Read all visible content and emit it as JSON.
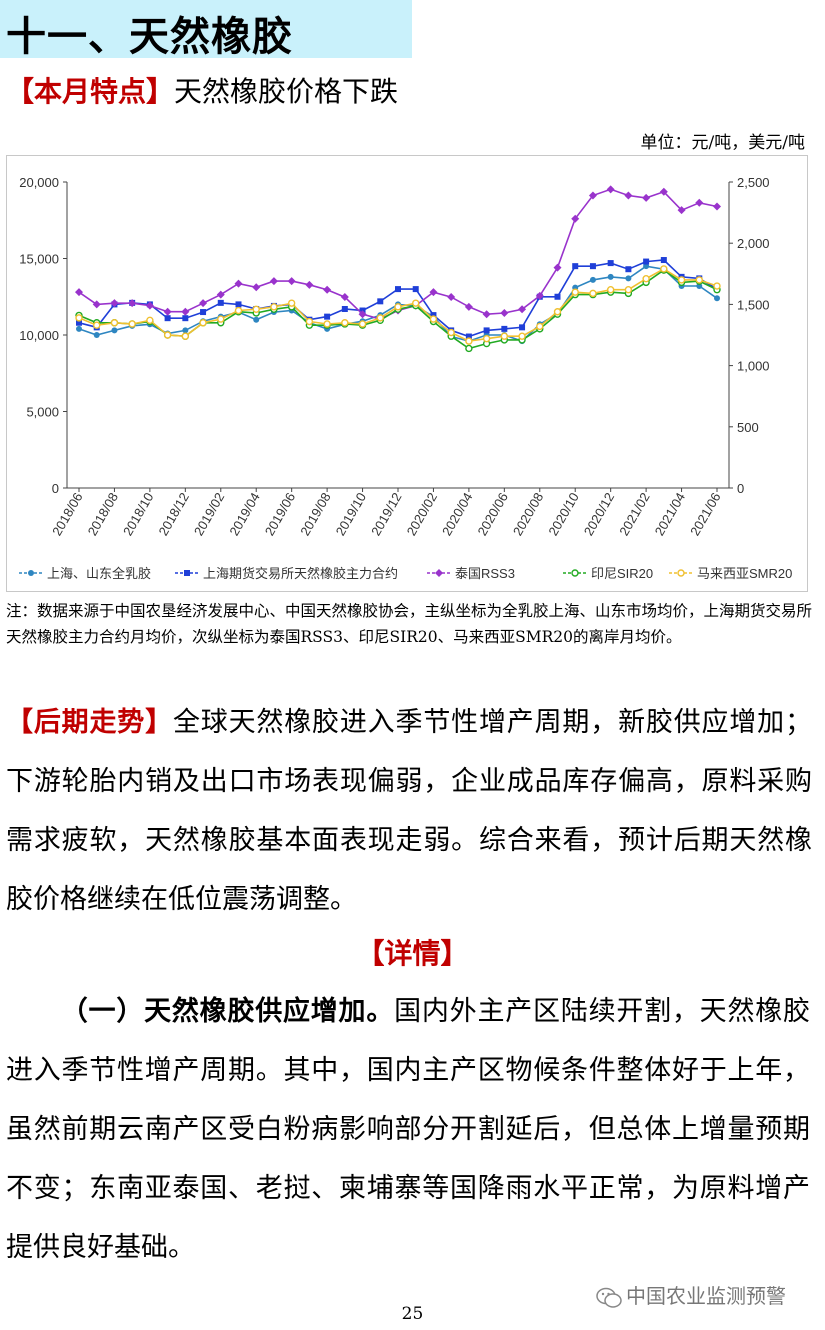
{
  "section_title": "十一、天然橡胶",
  "feature": {
    "tag": "【本月特点】",
    "text": "天然橡胶价格下跌"
  },
  "unit_note": "单位：元/吨，美元/吨",
  "chart_data": {
    "type": "line",
    "x": [
      "2018/06",
      "2018/07",
      "2018/08",
      "2018/09",
      "2018/10",
      "2018/11",
      "2018/12",
      "2019/01",
      "2019/02",
      "2019/03",
      "2019/04",
      "2019/05",
      "2019/06",
      "2019/07",
      "2019/08",
      "2019/09",
      "2019/10",
      "2019/11",
      "2019/12",
      "2020/01",
      "2020/02",
      "2020/03",
      "2020/04",
      "2020/05",
      "2020/06",
      "2020/07",
      "2020/08",
      "2020/09",
      "2020/10",
      "2020/11",
      "2020/12",
      "2021/01",
      "2021/02",
      "2021/03",
      "2021/04",
      "2021/05",
      "2021/06"
    ],
    "x_tick_labels": [
      "2018/06",
      "2018/08",
      "2018/10",
      "2018/12",
      "2019/02",
      "2019/04",
      "2019/06",
      "2019/08",
      "2019/10",
      "2019/12",
      "2020/02",
      "2020/04",
      "2020/06",
      "2020/08",
      "2020/10",
      "2020/12",
      "2021/02",
      "2021/04",
      "2021/06"
    ],
    "y_left": {
      "ylim": [
        0,
        20000
      ],
      "ticks": [
        "0",
        "5,000",
        "10,000",
        "15,000",
        "20,000"
      ]
    },
    "y_right": {
      "ylim": [
        0,
        2500
      ],
      "ticks": [
        "0",
        "500",
        "1,000",
        "1,500",
        "2,000",
        "2,500"
      ]
    },
    "series": [
      {
        "name": "上海、山东全乳胶",
        "axis": "left",
        "color": "#2e86c1",
        "marker": "circle-filled",
        "values": [
          10400,
          10000,
          10300,
          10600,
          10700,
          10100,
          10300,
          10900,
          11200,
          11500,
          11000,
          11500,
          11600,
          10800,
          10400,
          10700,
          10900,
          11300,
          12000,
          11900,
          11200,
          9900,
          9600,
          10000,
          10000,
          9600,
          10700,
          11400,
          13100,
          13600,
          13800,
          13700,
          14500,
          14300,
          13200,
          13200,
          12400
        ]
      },
      {
        "name": "上海期货交易所天然橡胶主力合约",
        "axis": "left",
        "color": "#1f3fd8",
        "marker": "square-filled",
        "values": [
          10800,
          10500,
          12000,
          12100,
          12000,
          11100,
          11100,
          11500,
          12100,
          12000,
          11700,
          11900,
          12000,
          11000,
          11200,
          11700,
          11600,
          12200,
          13000,
          13000,
          11300,
          10300,
          9900,
          10300,
          10400,
          10500,
          12500,
          12500,
          14500,
          14500,
          14700,
          14300,
          14800,
          14900,
          13800,
          13700,
          13000
        ]
      },
      {
        "name": "泰国RSS3",
        "axis": "right",
        "color": "#9933cc",
        "marker": "diamond-filled",
        "values": [
          1600,
          1500,
          1510,
          1510,
          1490,
          1440,
          1440,
          1510,
          1580,
          1670,
          1640,
          1690,
          1690,
          1660,
          1620,
          1560,
          1420,
          1380,
          1450,
          1490,
          1600,
          1560,
          1480,
          1420,
          1430,
          1460,
          1570,
          1800,
          2200,
          2390,
          2440,
          2390,
          2370,
          2420,
          2270,
          2330,
          2300
        ]
      },
      {
        "name": "印尼SIR20",
        "axis": "right",
        "color": "#22aa22",
        "marker": "circle-open",
        "values": [
          1410,
          1350,
          1350,
          1340,
          1360,
          1250,
          1240,
          1350,
          1350,
          1440,
          1430,
          1460,
          1480,
          1330,
          1330,
          1340,
          1330,
          1370,
          1460,
          1490,
          1360,
          1240,
          1140,
          1180,
          1210,
          1210,
          1300,
          1420,
          1580,
          1580,
          1600,
          1590,
          1680,
          1780,
          1680,
          1690,
          1620
        ]
      },
      {
        "name": "马来西亚SMR20",
        "axis": "right",
        "color": "#f0c030",
        "marker": "circle-open",
        "values": [
          1390,
          1330,
          1350,
          1340,
          1370,
          1250,
          1240,
          1350,
          1380,
          1450,
          1460,
          1480,
          1510,
          1360,
          1340,
          1350,
          1340,
          1390,
          1480,
          1510,
          1380,
          1270,
          1200,
          1220,
          1240,
          1240,
          1320,
          1440,
          1600,
          1590,
          1620,
          1620,
          1710,
          1790,
          1700,
          1700,
          1650
        ]
      }
    ]
  },
  "source_note": "注：数据来源于中国农垦经济发展中心、中国天然橡胶协会，主纵坐标为全乳胶上海、山东市场均价，上海期货交易所天然橡胶主力合约月均价，次纵坐标为泰国RSS3、印尼SIR20、马来西亚SMR20的离岸月均价。",
  "trend": {
    "tag": "【后期走势】",
    "text": "全球天然橡胶进入季节性增产周期，新胶供应增加；下游轮胎内销及出口市场表现偏弱，企业成品库存偏高，原料采购需求疲软，天然橡胶基本面表现走弱。综合来看，预计后期天然橡胶价格继续在低位震荡调整。"
  },
  "details_heading": "【详情】",
  "para1": {
    "lead": "（一）天然橡胶供应增加。",
    "text": "国内外主产区陆续开割，天然橡胶进入季节性增产周期。其中，国内主产区物候条件整体好于上年，虽然前期云南产区受白粉病影响部分开割延后，但总体上增量预期不变；东南亚泰国、老挝、柬埔寨等国降雨水平正常，为原料增产提供良好基础。"
  },
  "watermark": "中国农业监测预警",
  "page_number": "25"
}
